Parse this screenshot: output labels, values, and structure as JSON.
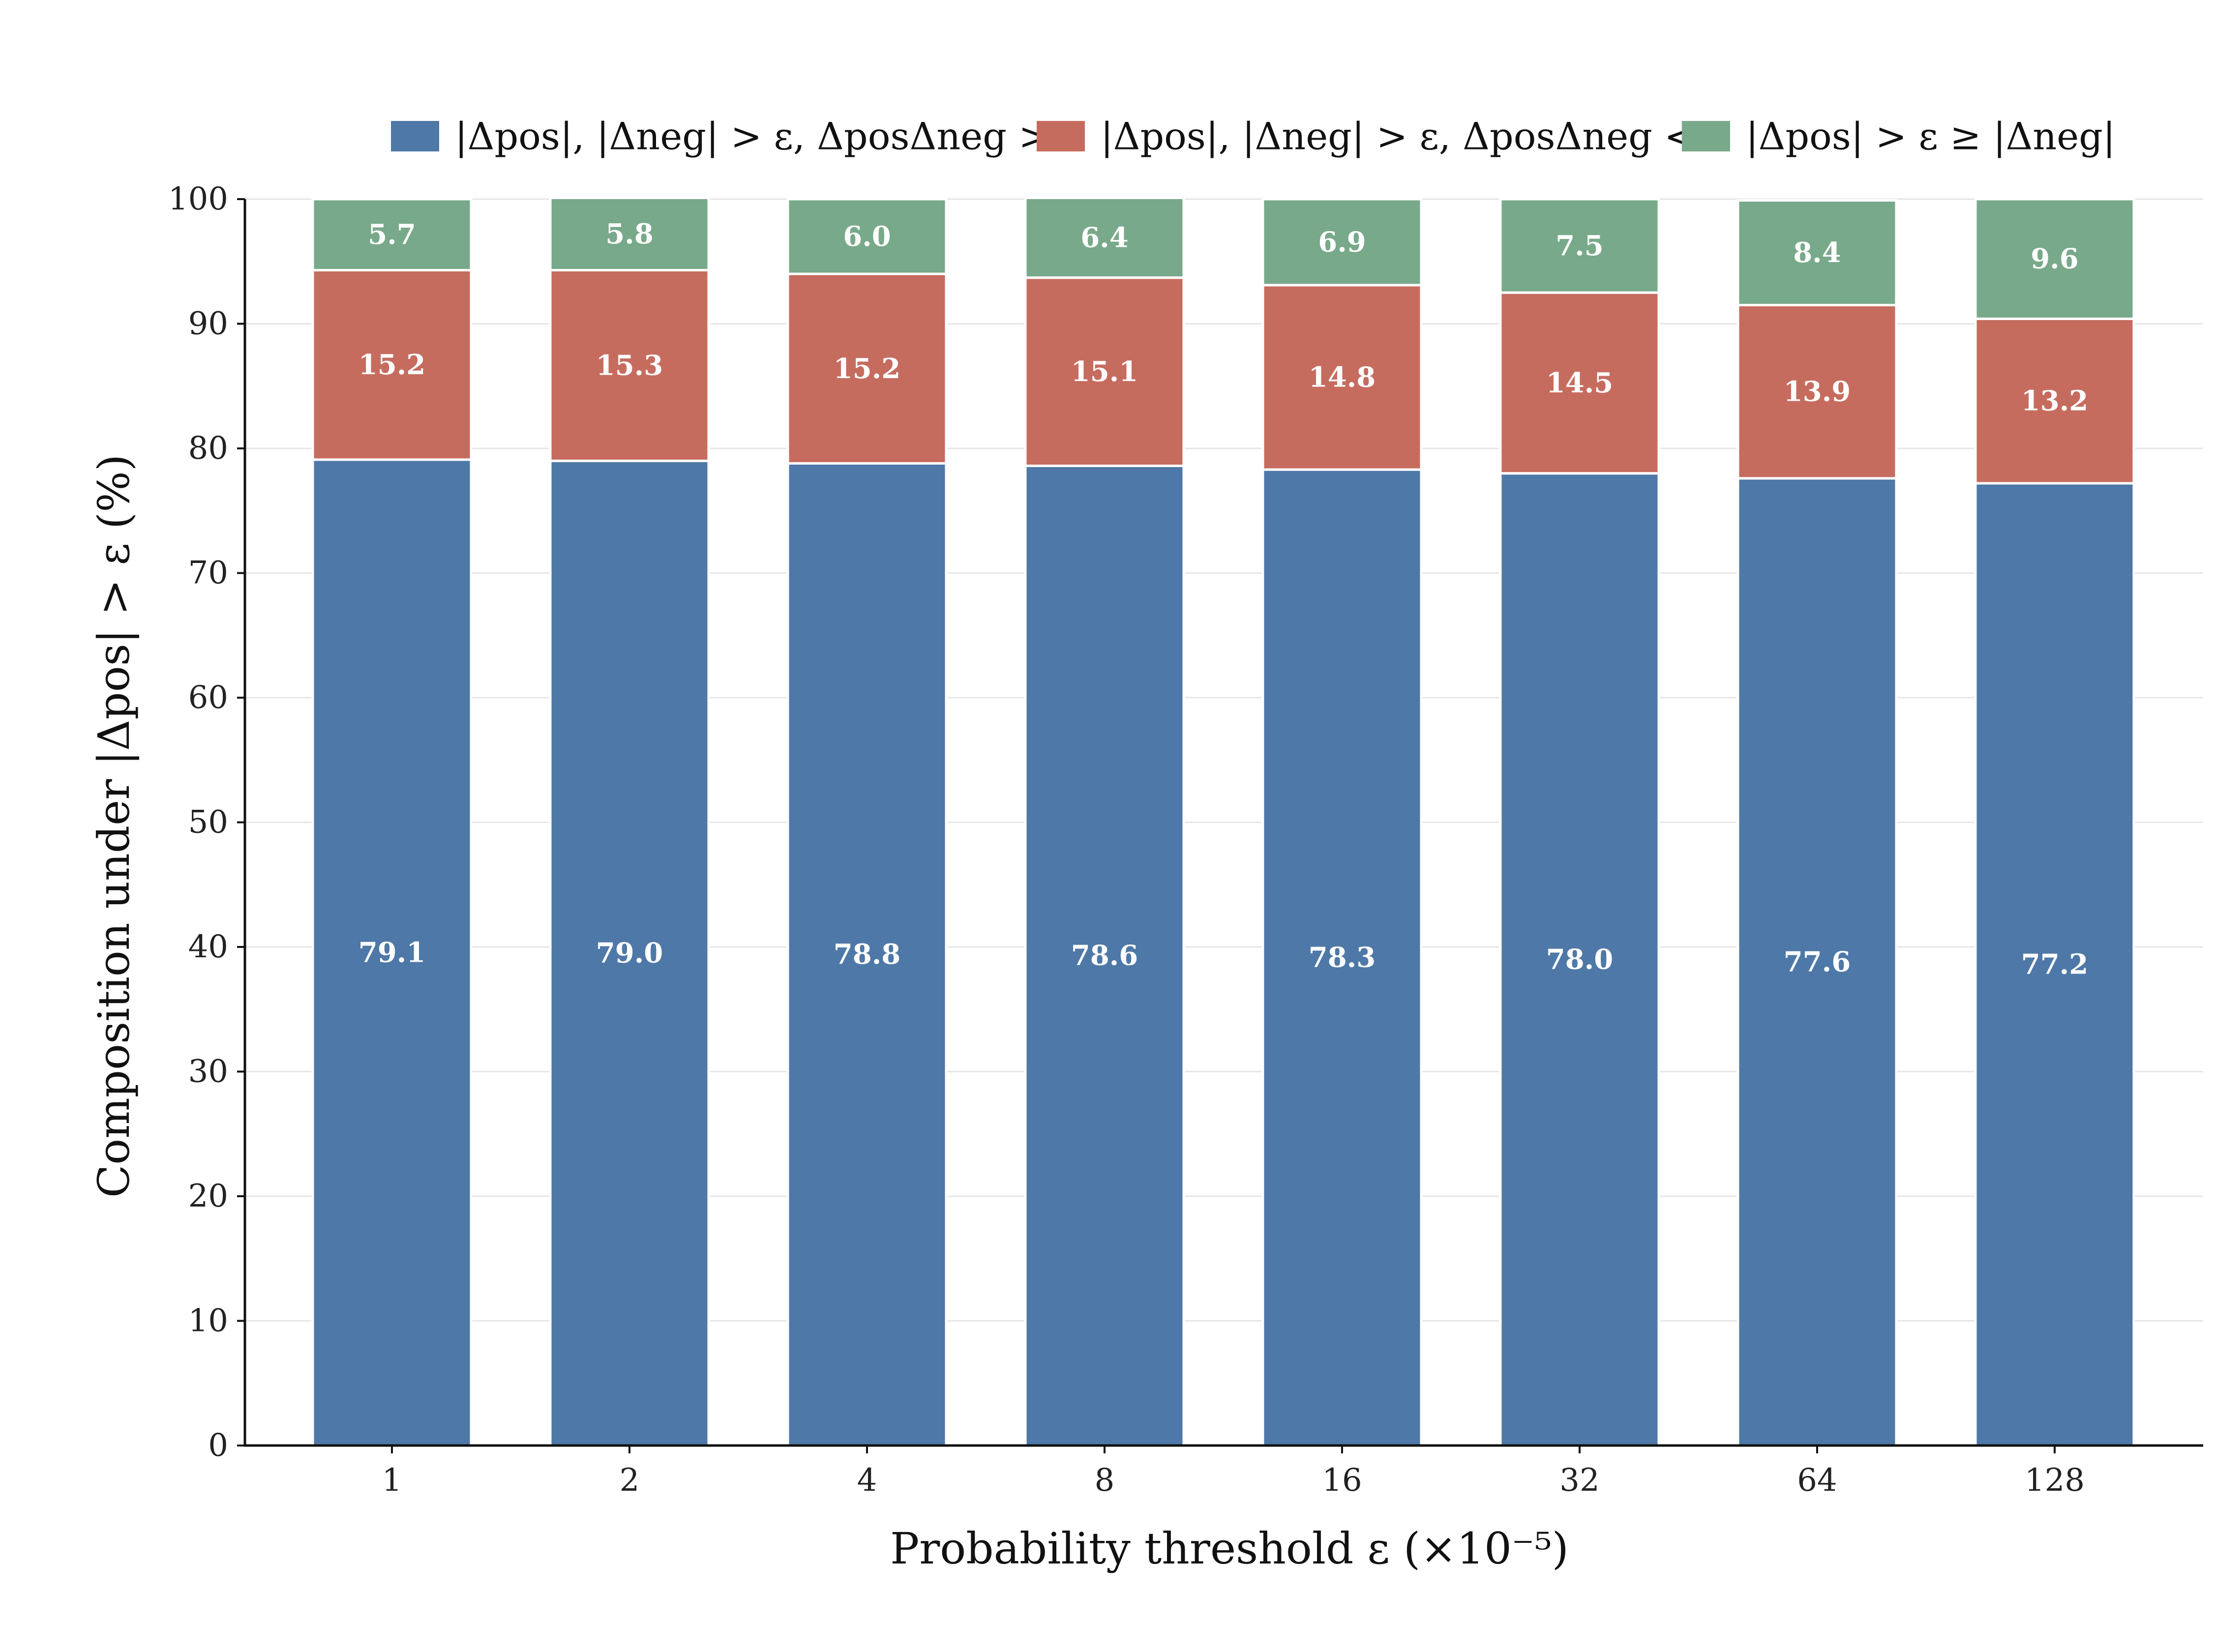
{
  "chart_data": {
    "type": "bar",
    "stacked": true,
    "xlabel": "Probability threshold ε (×10⁻⁵)",
    "ylabel": "Composition under |Δpos| > ε (%)",
    "categories": [
      "1",
      "2",
      "4",
      "8",
      "16",
      "32",
      "64",
      "128"
    ],
    "ylim": [
      0,
      100
    ],
    "yticks": [
      "0",
      "10",
      "20",
      "30",
      "40",
      "50",
      "60",
      "70",
      "80",
      "90",
      "100"
    ],
    "grid": "horizontal",
    "legend_position": "top-center",
    "series": [
      {
        "name": "|Δpos|, |Δneg| > ε, ΔposΔneg > 0",
        "color": "#4e78a7",
        "values": [
          79.1,
          79.0,
          78.8,
          78.6,
          78.3,
          78.0,
          77.6,
          77.2
        ],
        "labels": [
          "79.1",
          "79.0",
          "78.8",
          "78.6",
          "78.3",
          "78.0",
          "77.6",
          "77.2"
        ]
      },
      {
        "name": "|Δpos|, |Δneg| > ε, ΔposΔneg < 0",
        "color": "#c66c5f",
        "values": [
          15.2,
          15.3,
          15.2,
          15.1,
          14.8,
          14.5,
          13.9,
          13.2
        ],
        "labels": [
          "15.2",
          "15.3",
          "15.2",
          "15.1",
          "14.8",
          "14.5",
          "13.9",
          "13.2"
        ]
      },
      {
        "name": "|Δpos| > ε ≥ |Δneg|",
        "color": "#78a98a",
        "values": [
          5.7,
          5.8,
          6.0,
          6.4,
          6.9,
          7.5,
          8.4,
          9.6
        ],
        "labels": [
          "5.7",
          "5.8",
          "6.0",
          "6.4",
          "6.9",
          "7.5",
          "8.4",
          "9.6"
        ]
      }
    ]
  }
}
